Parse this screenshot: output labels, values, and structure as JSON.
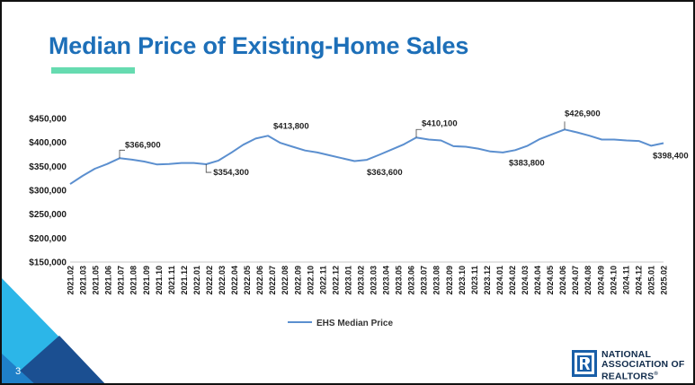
{
  "slide": {
    "title": "Median Price of Existing-Home Sales",
    "page_number": "3",
    "accent_color": "#66dbb0",
    "title_color": "#1d6fb8"
  },
  "logo": {
    "line1": "NATIONAL",
    "line2": "ASSOCIATION OF",
    "line3": "REALTORS",
    "trademark": "®",
    "icon": "realtor-r-logo-icon",
    "color": "#1a5fa8"
  },
  "chart_data": {
    "type": "line",
    "title": "",
    "xlabel": "",
    "ylabel": "",
    "ylim": [
      150000,
      450000
    ],
    "y_ticks": [
      150000,
      200000,
      250000,
      300000,
      350000,
      400000,
      450000
    ],
    "y_tick_labels": [
      "$150,000",
      "$200,000",
      "$250,000",
      "$300,000",
      "$350,000",
      "$400,000",
      "$450,000"
    ],
    "grid": false,
    "legend": "bottom-center",
    "x": [
      "2021.02",
      "2021.03",
      "2021.04",
      "2021.05",
      "2021.06",
      "2021.07",
      "2021.08",
      "2021.09",
      "2021.10",
      "2021.11",
      "2021.12",
      "2022.01",
      "2022.02",
      "2022.03",
      "2022.04",
      "2022.05",
      "2022.06",
      "2022.07",
      "2022.08",
      "2022.09",
      "2022.10",
      "2022.11",
      "2022.12",
      "2023.01",
      "2023.02",
      "2023.03",
      "2023.04",
      "2023.05",
      "2023.06",
      "2023.07",
      "2023.08",
      "2023.09",
      "2023.10",
      "2023.11",
      "2023.12",
      "2024.01",
      "2024.02",
      "2024.03",
      "2024.04",
      "2024.05",
      "2024.06",
      "2024.07",
      "2024.08",
      "2024.09",
      "2024.10",
      "2024.11",
      "2024.12",
      "2025.01",
      "2025.02"
    ],
    "x_tick_labels": [
      "2021.02",
      "2021.03",
      "2021.05",
      "2021.06",
      "2021.07",
      "2021.08",
      "2021.09",
      "2021.10",
      "2021.11",
      "2021.12",
      "2022.01",
      "2022.02",
      "2022.03",
      "2022.04",
      "2022.05",
      "2022.06",
      "2022.07",
      "2022.08",
      "2022.09",
      "2022.10",
      "2022.11",
      "2022.12",
      "2023.01",
      "2023.02",
      "2023.03",
      "2023.04",
      "2023.05",
      "2023.06",
      "2023.07",
      "2023.08",
      "2023.09",
      "2023.10",
      "2023.11",
      "2023.12",
      "2024.01",
      "2024.02",
      "2024.03",
      "2024.04",
      "2024.05",
      "2024.06",
      "2024.07",
      "2024.08",
      "2024.09",
      "2024.10",
      "2024.11",
      "2024.12",
      "2025.01",
      "2025.02"
    ],
    "series": [
      {
        "name": "EHS Median Price",
        "color": "#5b8fcf",
        "values": [
          313000,
          330000,
          345000,
          355000,
          366900,
          364000,
          360000,
          354000,
          355000,
          357000,
          357000,
          354300,
          362000,
          378000,
          395000,
          408000,
          413800,
          399000,
          391000,
          383000,
          379000,
          373000,
          367000,
          361000,
          363600,
          374000,
          385000,
          396000,
          410100,
          406000,
          404000,
          392000,
          391000,
          387000,
          381000,
          379000,
          383800,
          393000,
          407000,
          417000,
          426900,
          421000,
          414000,
          406000,
          406000,
          404000,
          403000,
          393000,
          398400
        ]
      }
    ],
    "annotations": [
      {
        "label": "$366,900",
        "index": 4
      },
      {
        "label": "$354,300",
        "index": 11
      },
      {
        "label": "$413,800",
        "index": 16
      },
      {
        "label": "$363,600",
        "index": 24
      },
      {
        "label": "$410,100",
        "index": 28
      },
      {
        "label": "$383,800",
        "index": 36
      },
      {
        "label": "$426,900",
        "index": 40
      },
      {
        "label": "$398,400",
        "index": 48
      }
    ]
  }
}
